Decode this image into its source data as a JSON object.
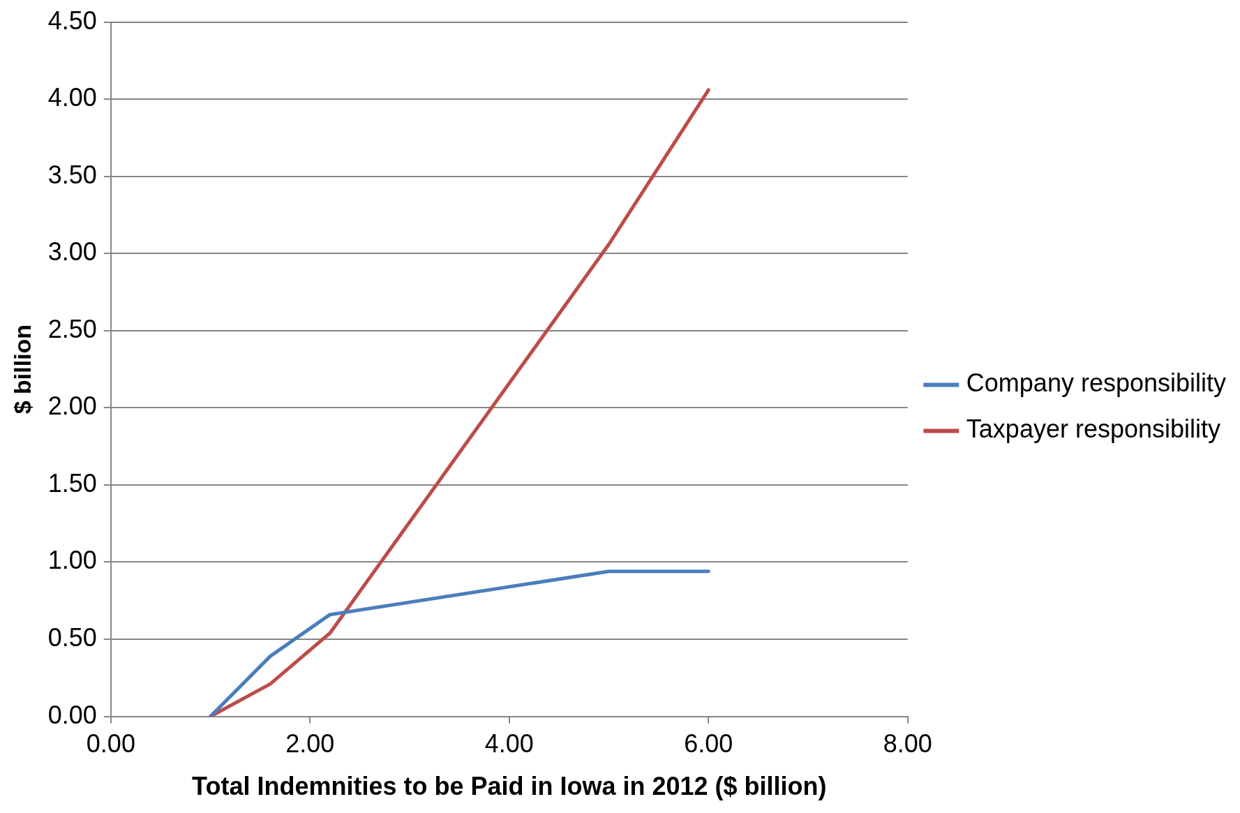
{
  "chart_data": {
    "type": "line",
    "xlabel": "Total Indemnities to be Paid in Iowa in 2012 ($ billion)",
    "ylabel": "$ billion",
    "x": [
      1.0,
      1.6,
      2.2,
      5.0,
      6.0
    ],
    "series": [
      {
        "name": "Company responsibility",
        "color": "#4a7ebb",
        "values": [
          0,
          0.39,
          0.66,
          0.94,
          0.94
        ]
      },
      {
        "name": "Taxpayer responsibility",
        "color": "#be4b48",
        "values": [
          0,
          0.21,
          0.54,
          3.06,
          4.06
        ]
      }
    ],
    "xlim": [
      0,
      8
    ],
    "xticks": [
      {
        "value": 0,
        "label": "0.00"
      },
      {
        "value": 2,
        "label": "2.00"
      },
      {
        "value": 4,
        "label": "4.00"
      },
      {
        "value": 6,
        "label": "6.00"
      },
      {
        "value": 8,
        "label": "8.00"
      }
    ],
    "ylim": [
      0,
      4.5
    ],
    "yticks": [
      {
        "value": 0,
        "label": "0.00"
      },
      {
        "value": 0.5,
        "label": "0.50"
      },
      {
        "value": 1,
        "label": "1.00"
      },
      {
        "value": 1.5,
        "label": "1.50"
      },
      {
        "value": 2,
        "label": "2.00"
      },
      {
        "value": 2.5,
        "label": "2.50"
      },
      {
        "value": 3,
        "label": "3.00"
      },
      {
        "value": 3.5,
        "label": "3.50"
      },
      {
        "value": 4,
        "label": "4.00"
      },
      {
        "value": 4.5,
        "label": "4.50"
      }
    ],
    "grid": "y",
    "legend": "right",
    "marker": "none",
    "line_style": "solid"
  }
}
